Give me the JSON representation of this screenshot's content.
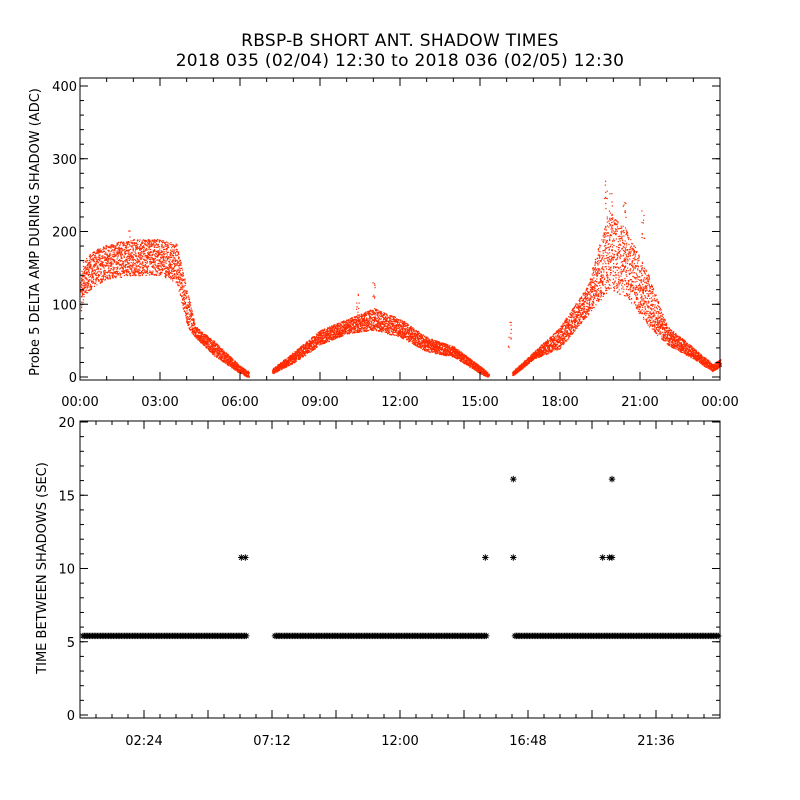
{
  "title_line1": "RBSP-B SHORT ANT. SHADOW TIMES",
  "title_line2": "2018 035 (02/04) 12:30 to 2018 036 (02/05) 12:30",
  "colors": {
    "upper_series": "#ff2a00",
    "lower_series": "#000000",
    "axes": "#000000"
  },
  "chart_data": [
    {
      "type": "scatter",
      "ylabel": "Probe 5 DELTA AMP DURING SHADOW (ADC)",
      "xlabel": "",
      "ylim": [
        0,
        400
      ],
      "xlim_hours": [
        0,
        24
      ],
      "x_tick_labels": [
        "00:00",
        "03:00",
        "06:00",
        "09:00",
        "12:00",
        "15:00",
        "18:00",
        "21:00",
        "00:00"
      ],
      "y_tick_labels": [
        "0",
        "100",
        "200",
        "300",
        "400"
      ],
      "series": [
        {
          "marker": "dot",
          "x_unit": "hours",
          "envelope": [
            {
              "x": 0.0,
              "low": 80,
              "high": 140
            },
            {
              "x": 0.1,
              "low": 110,
              "high": 160
            },
            {
              "x": 0.5,
              "low": 125,
              "high": 175
            },
            {
              "x": 1.0,
              "low": 135,
              "high": 183
            },
            {
              "x": 2.0,
              "low": 140,
              "high": 190
            },
            {
              "x": 3.0,
              "low": 140,
              "high": 190
            },
            {
              "x": 3.6,
              "low": 130,
              "high": 183
            },
            {
              "x": 4.0,
              "low": 70,
              "high": 120
            },
            {
              "x": 4.3,
              "low": 55,
              "high": 70
            },
            {
              "x": 5.0,
              "low": 30,
              "high": 50
            },
            {
              "x": 6.0,
              "low": 5,
              "high": 15
            },
            {
              "x": 6.3,
              "low": 0,
              "high": 8
            },
            {
              "gap": true
            },
            {
              "x": 7.2,
              "low": 5,
              "high": 12
            },
            {
              "x": 8.0,
              "low": 20,
              "high": 35
            },
            {
              "x": 9.0,
              "low": 45,
              "high": 65
            },
            {
              "x": 10.0,
              "low": 60,
              "high": 80
            },
            {
              "x": 11.0,
              "low": 65,
              "high": 95
            },
            {
              "x": 12.0,
              "low": 55,
              "high": 80
            },
            {
              "x": 13.0,
              "low": 35,
              "high": 55
            },
            {
              "x": 14.0,
              "low": 28,
              "high": 42
            },
            {
              "x": 15.0,
              "low": 5,
              "high": 15
            },
            {
              "x": 15.3,
              "low": 0,
              "high": 5
            },
            {
              "gap": true
            },
            {
              "x": 16.2,
              "low": 2,
              "high": 8
            },
            {
              "x": 17.0,
              "low": 25,
              "high": 35
            },
            {
              "x": 18.0,
              "low": 40,
              "high": 70
            },
            {
              "x": 19.0,
              "low": 85,
              "high": 125
            },
            {
              "x": 19.8,
              "low": 120,
              "high": 230
            },
            {
              "x": 20.5,
              "low": 110,
              "high": 200
            },
            {
              "x": 21.3,
              "low": 70,
              "high": 140
            },
            {
              "x": 22.0,
              "low": 45,
              "high": 70
            },
            {
              "x": 23.0,
              "low": 25,
              "high": 40
            },
            {
              "x": 23.7,
              "low": 8,
              "high": 18
            },
            {
              "x": 24.0,
              "low": 15,
              "high": 25
            }
          ],
          "spikes": [
            {
              "x": 1.8,
              "y": 205
            },
            {
              "x": 10.4,
              "y": 125
            },
            {
              "x": 11.0,
              "y": 135
            },
            {
              "x": 16.1,
              "y": 85
            },
            {
              "x": 19.7,
              "y": 270
            },
            {
              "x": 19.9,
              "y": 255
            },
            {
              "x": 20.4,
              "y": 245
            },
            {
              "x": 21.1,
              "y": 235
            }
          ]
        }
      ]
    },
    {
      "type": "scatter",
      "ylabel": "TIME BETWEEN SHADOWS (SEC)",
      "xlabel": "",
      "ylim": [
        0,
        20
      ],
      "xlim_hours": [
        0,
        24
      ],
      "x_tick_labels": [
        "02:24",
        "07:12",
        "12:00",
        "16:48",
        "21:36"
      ],
      "y_tick_labels": [
        "0",
        "5",
        "10",
        "15",
        "20"
      ],
      "series": [
        {
          "marker": "asterisk",
          "x_unit": "hours",
          "baseline_value": 5.4,
          "baseline_ranges": [
            [
              0.0,
              6.3
            ],
            [
              7.2,
              15.3
            ],
            [
              16.2,
              24.0
            ]
          ],
          "outliers": [
            {
              "x": 6.05,
              "y": 10.75
            },
            {
              "x": 6.2,
              "y": 10.75
            },
            {
              "x": 15.2,
              "y": 10.75
            },
            {
              "x": 16.25,
              "y": 16.1
            },
            {
              "x": 16.25,
              "y": 10.75
            },
            {
              "x": 19.6,
              "y": 10.75
            },
            {
              "x": 19.85,
              "y": 10.75
            },
            {
              "x": 19.95,
              "y": 10.75
            },
            {
              "x": 19.95,
              "y": 16.1
            }
          ]
        }
      ]
    }
  ]
}
